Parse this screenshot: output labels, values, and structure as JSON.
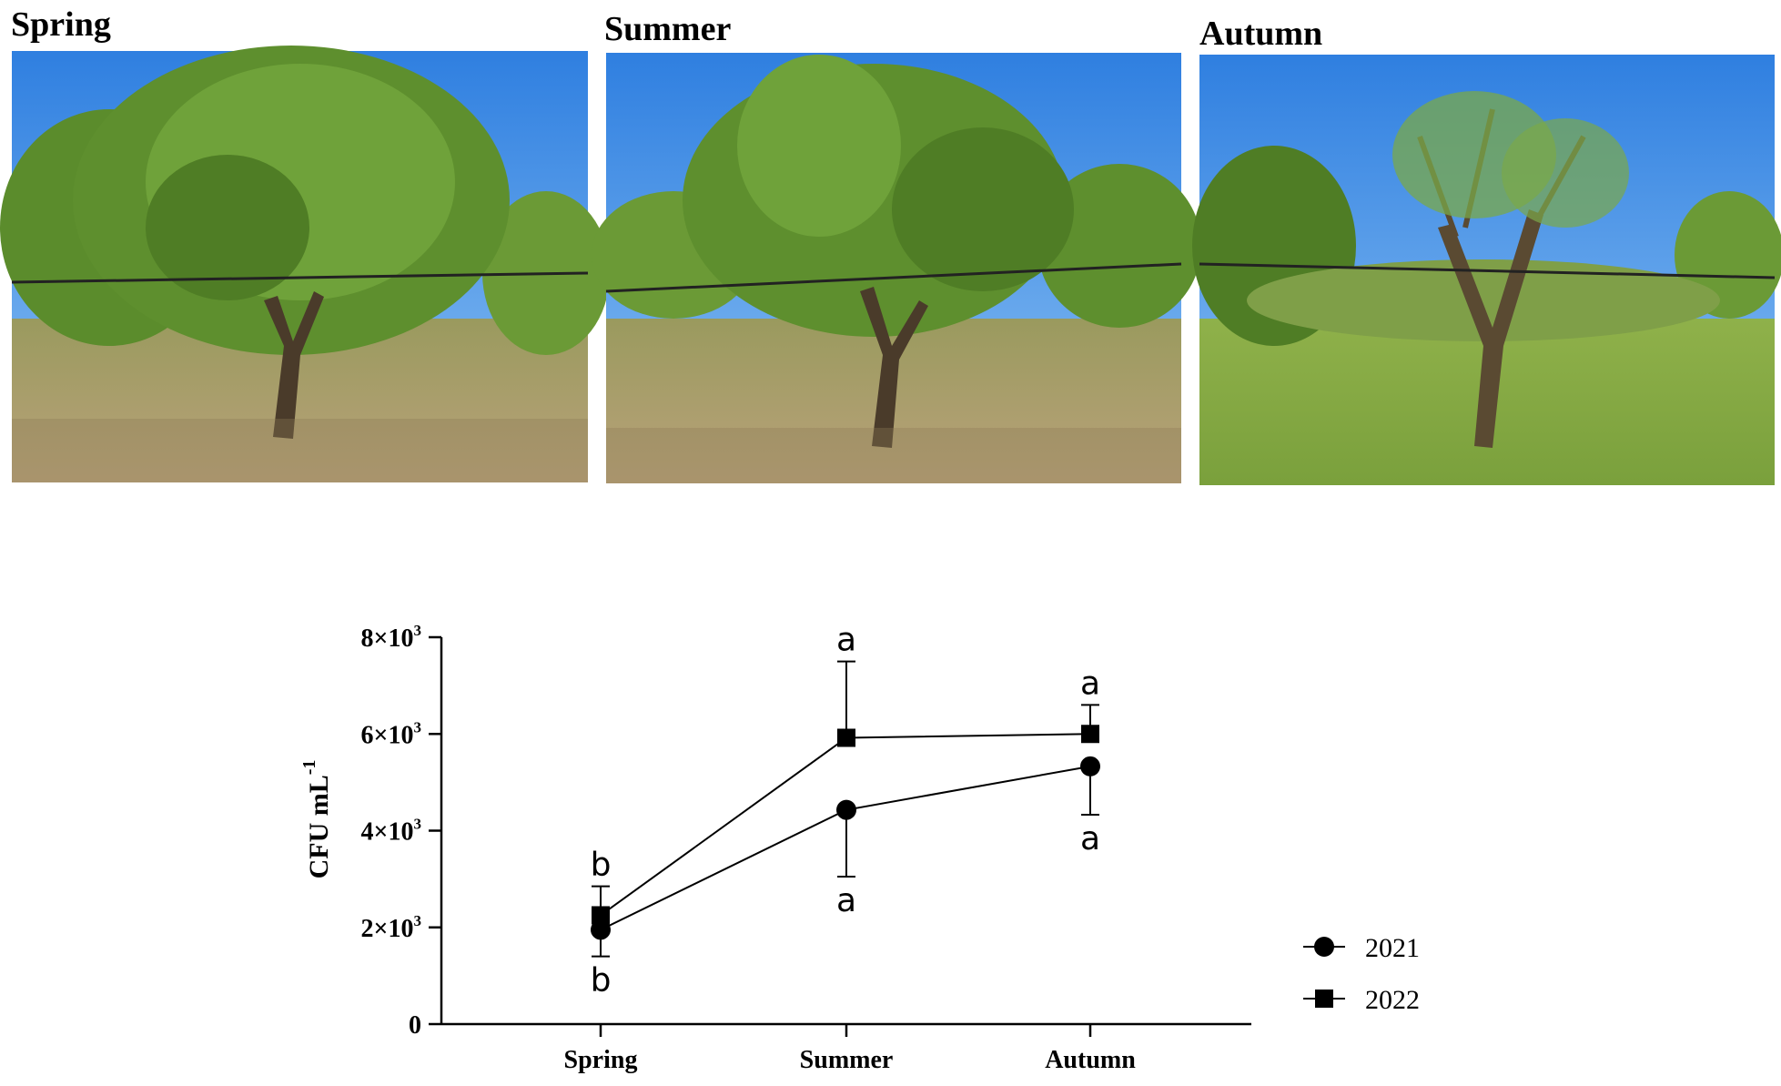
{
  "photos": [
    {
      "label": "Spring"
    },
    {
      "label": "Summer"
    },
    {
      "label": "Autumn"
    }
  ],
  "colors": {
    "sky": "#3b8be8",
    "sky_light": "#7db8f2",
    "foliage": "#5e8f2e",
    "foliage_dark": "#3f6a1f",
    "ground": "#b7a47c",
    "grass": "#8fb14a",
    "trunk": "#4a3b2a",
    "line": "#000000"
  },
  "chart_data": {
    "type": "line",
    "categories": [
      "Spring",
      "Summer",
      "Autumn"
    ],
    "ylabel": "CFU mL",
    "ylabel_sup": "-1",
    "ylim": [
      0,
      8000
    ],
    "yticks": [
      {
        "value": 0,
        "base": "0",
        "exp": ""
      },
      {
        "value": 2000,
        "base": "2×10",
        "exp": "3"
      },
      {
        "value": 4000,
        "base": "4×10",
        "exp": "3"
      },
      {
        "value": 6000,
        "base": "6×10",
        "exp": "3"
      },
      {
        "value": 8000,
        "base": "8×10",
        "exp": "3"
      }
    ],
    "legend_position": "right",
    "series": [
      {
        "name": "2021",
        "marker": "circle",
        "values": [
          1950,
          4430,
          5330
        ],
        "err_low": [
          1400,
          3050,
          4330
        ],
        "err_high": [
          2500,
          5800,
          6330
        ],
        "letters": [
          "b",
          "a",
          "a"
        ],
        "letter_side": "below"
      },
      {
        "name": "2022",
        "marker": "square",
        "values": [
          2250,
          5920,
          6000
        ],
        "err_low": [
          1700,
          4350,
          5400
        ],
        "err_high": [
          2850,
          7500,
          6600
        ],
        "letters": [
          "b",
          "a",
          "a"
        ],
        "letter_side": "above"
      }
    ]
  }
}
